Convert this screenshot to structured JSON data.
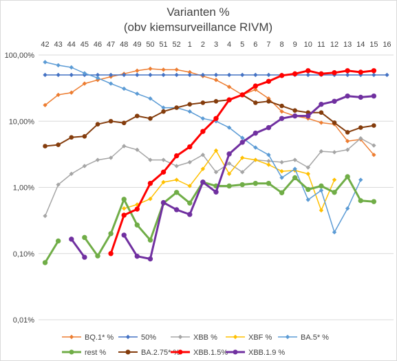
{
  "chart_data": {
    "type": "line",
    "title": "Varianten %",
    "subtitle": "(obv kiemsurveillance RIVM)",
    "y_scale": "log",
    "ylim": [
      0.01,
      100
    ],
    "y_tick_values": [
      0.01,
      0.1,
      1,
      10,
      100
    ],
    "y_tick_labels": [
      "0,01%",
      "0,10%",
      "1,00%",
      "10,00%",
      "100,00%"
    ],
    "x_axis_position": "top",
    "grid": true,
    "legend_position": "bottom",
    "categories": [
      "42",
      "43",
      "44",
      "45",
      "46",
      "47",
      "48",
      "49",
      "50",
      "51",
      "52",
      "1",
      "2",
      "3",
      "4",
      "5",
      "6",
      "7",
      "8",
      "9",
      "10",
      "11",
      "12",
      "13",
      "14",
      "15",
      "16"
    ],
    "series": [
      {
        "name": "BQ.1* %",
        "color": "#ED7D31",
        "marker": "diamond",
        "width": 1.5,
        "values": [
          17.5,
          25,
          27,
          37,
          42,
          47,
          52,
          58,
          62,
          60,
          60,
          55,
          48,
          42,
          33,
          25,
          30,
          22,
          14,
          12,
          11,
          9.5,
          9,
          5,
          5.3,
          3.1,
          null
        ]
      },
      {
        "name": "50%",
        "color": "#4472C4",
        "marker": "diamond",
        "width": 1.5,
        "values": [
          50,
          50,
          50,
          50,
          50,
          50,
          50,
          50,
          50,
          50,
          50,
          50,
          50,
          50,
          50,
          50,
          50,
          50,
          50,
          50,
          50,
          50,
          50,
          50,
          50,
          50,
          50
        ]
      },
      {
        "name": "XBB %",
        "color": "#A5A5A5",
        "marker": "diamond",
        "width": 1.5,
        "values": [
          0.37,
          1.1,
          1.6,
          2.1,
          2.6,
          2.8,
          4.2,
          3.7,
          2.6,
          2.6,
          2.1,
          2.4,
          3.1,
          1.7,
          2.3,
          1.7,
          2.6,
          2.5,
          2.4,
          2.6,
          2,
          3.5,
          3.4,
          3.7,
          5.5,
          4.3,
          null
        ]
      },
      {
        "name": "XBF %",
        "color": "#FFC000",
        "marker": "diamond",
        "width": 1.5,
        "values": [
          null,
          null,
          null,
          null,
          null,
          null,
          0.48,
          0.55,
          0.67,
          1.2,
          1.3,
          1.05,
          1.9,
          3.6,
          1.6,
          2.8,
          2.6,
          2.2,
          1.75,
          1.8,
          1.6,
          0.45,
          1.3,
          null,
          null,
          null,
          null
        ]
      },
      {
        "name": "BA.5* %",
        "color": "#5B9BD5",
        "marker": "diamond",
        "width": 1.5,
        "values": [
          78,
          70,
          65,
          53,
          45,
          37,
          31,
          26,
          22,
          16,
          16,
          14,
          11,
          10,
          8,
          5.6,
          4,
          3.1,
          1.4,
          1.9,
          0.65,
          0.9,
          0.21,
          0.48,
          1.3,
          null,
          null
        ]
      },
      {
        "name": "rest %",
        "color": "#70AD47",
        "marker": "circle",
        "width": 3,
        "values": [
          0.073,
          0.155,
          null,
          0.175,
          0.092,
          0.2,
          0.66,
          0.27,
          0.16,
          0.58,
          0.84,
          0.58,
          1.2,
          1.05,
          1.05,
          1.1,
          1.15,
          1.15,
          0.83,
          1.4,
          0.93,
          1.05,
          0.84,
          1.45,
          0.63,
          0.61,
          null
        ]
      },
      {
        "name": "BA.2.75* %",
        "color": "#843C0C",
        "marker": "circle",
        "width": 2,
        "values": [
          4.2,
          4.4,
          5.7,
          5.9,
          9,
          10,
          9.4,
          12,
          11,
          14,
          16,
          18,
          19,
          20,
          21,
          25,
          19,
          20,
          17,
          14.5,
          13.5,
          13.5,
          9.5,
          6.8,
          8,
          8.6,
          null
        ]
      },
      {
        "name": "XBB.1.5%",
        "color": "#FF0000",
        "marker": "circle",
        "width": 3,
        "values": [
          null,
          null,
          null,
          null,
          null,
          0.1,
          0.38,
          0.47,
          1.15,
          1.7,
          3,
          4.1,
          7,
          11,
          21,
          25,
          34,
          40,
          49,
          52,
          58,
          52,
          54,
          58,
          55,
          58,
          null
        ]
      },
      {
        "name": "XBB.1.9 %",
        "color": "#7030A0",
        "marker": "circle",
        "width": 3,
        "values": [
          null,
          null,
          0.165,
          0.088,
          null,
          null,
          0.19,
          0.091,
          0.083,
          0.59,
          0.46,
          0.39,
          1.2,
          0.85,
          3.2,
          4.8,
          6.6,
          8,
          11,
          12,
          12,
          18,
          20,
          24,
          23,
          24,
          null
        ]
      }
    ]
  }
}
